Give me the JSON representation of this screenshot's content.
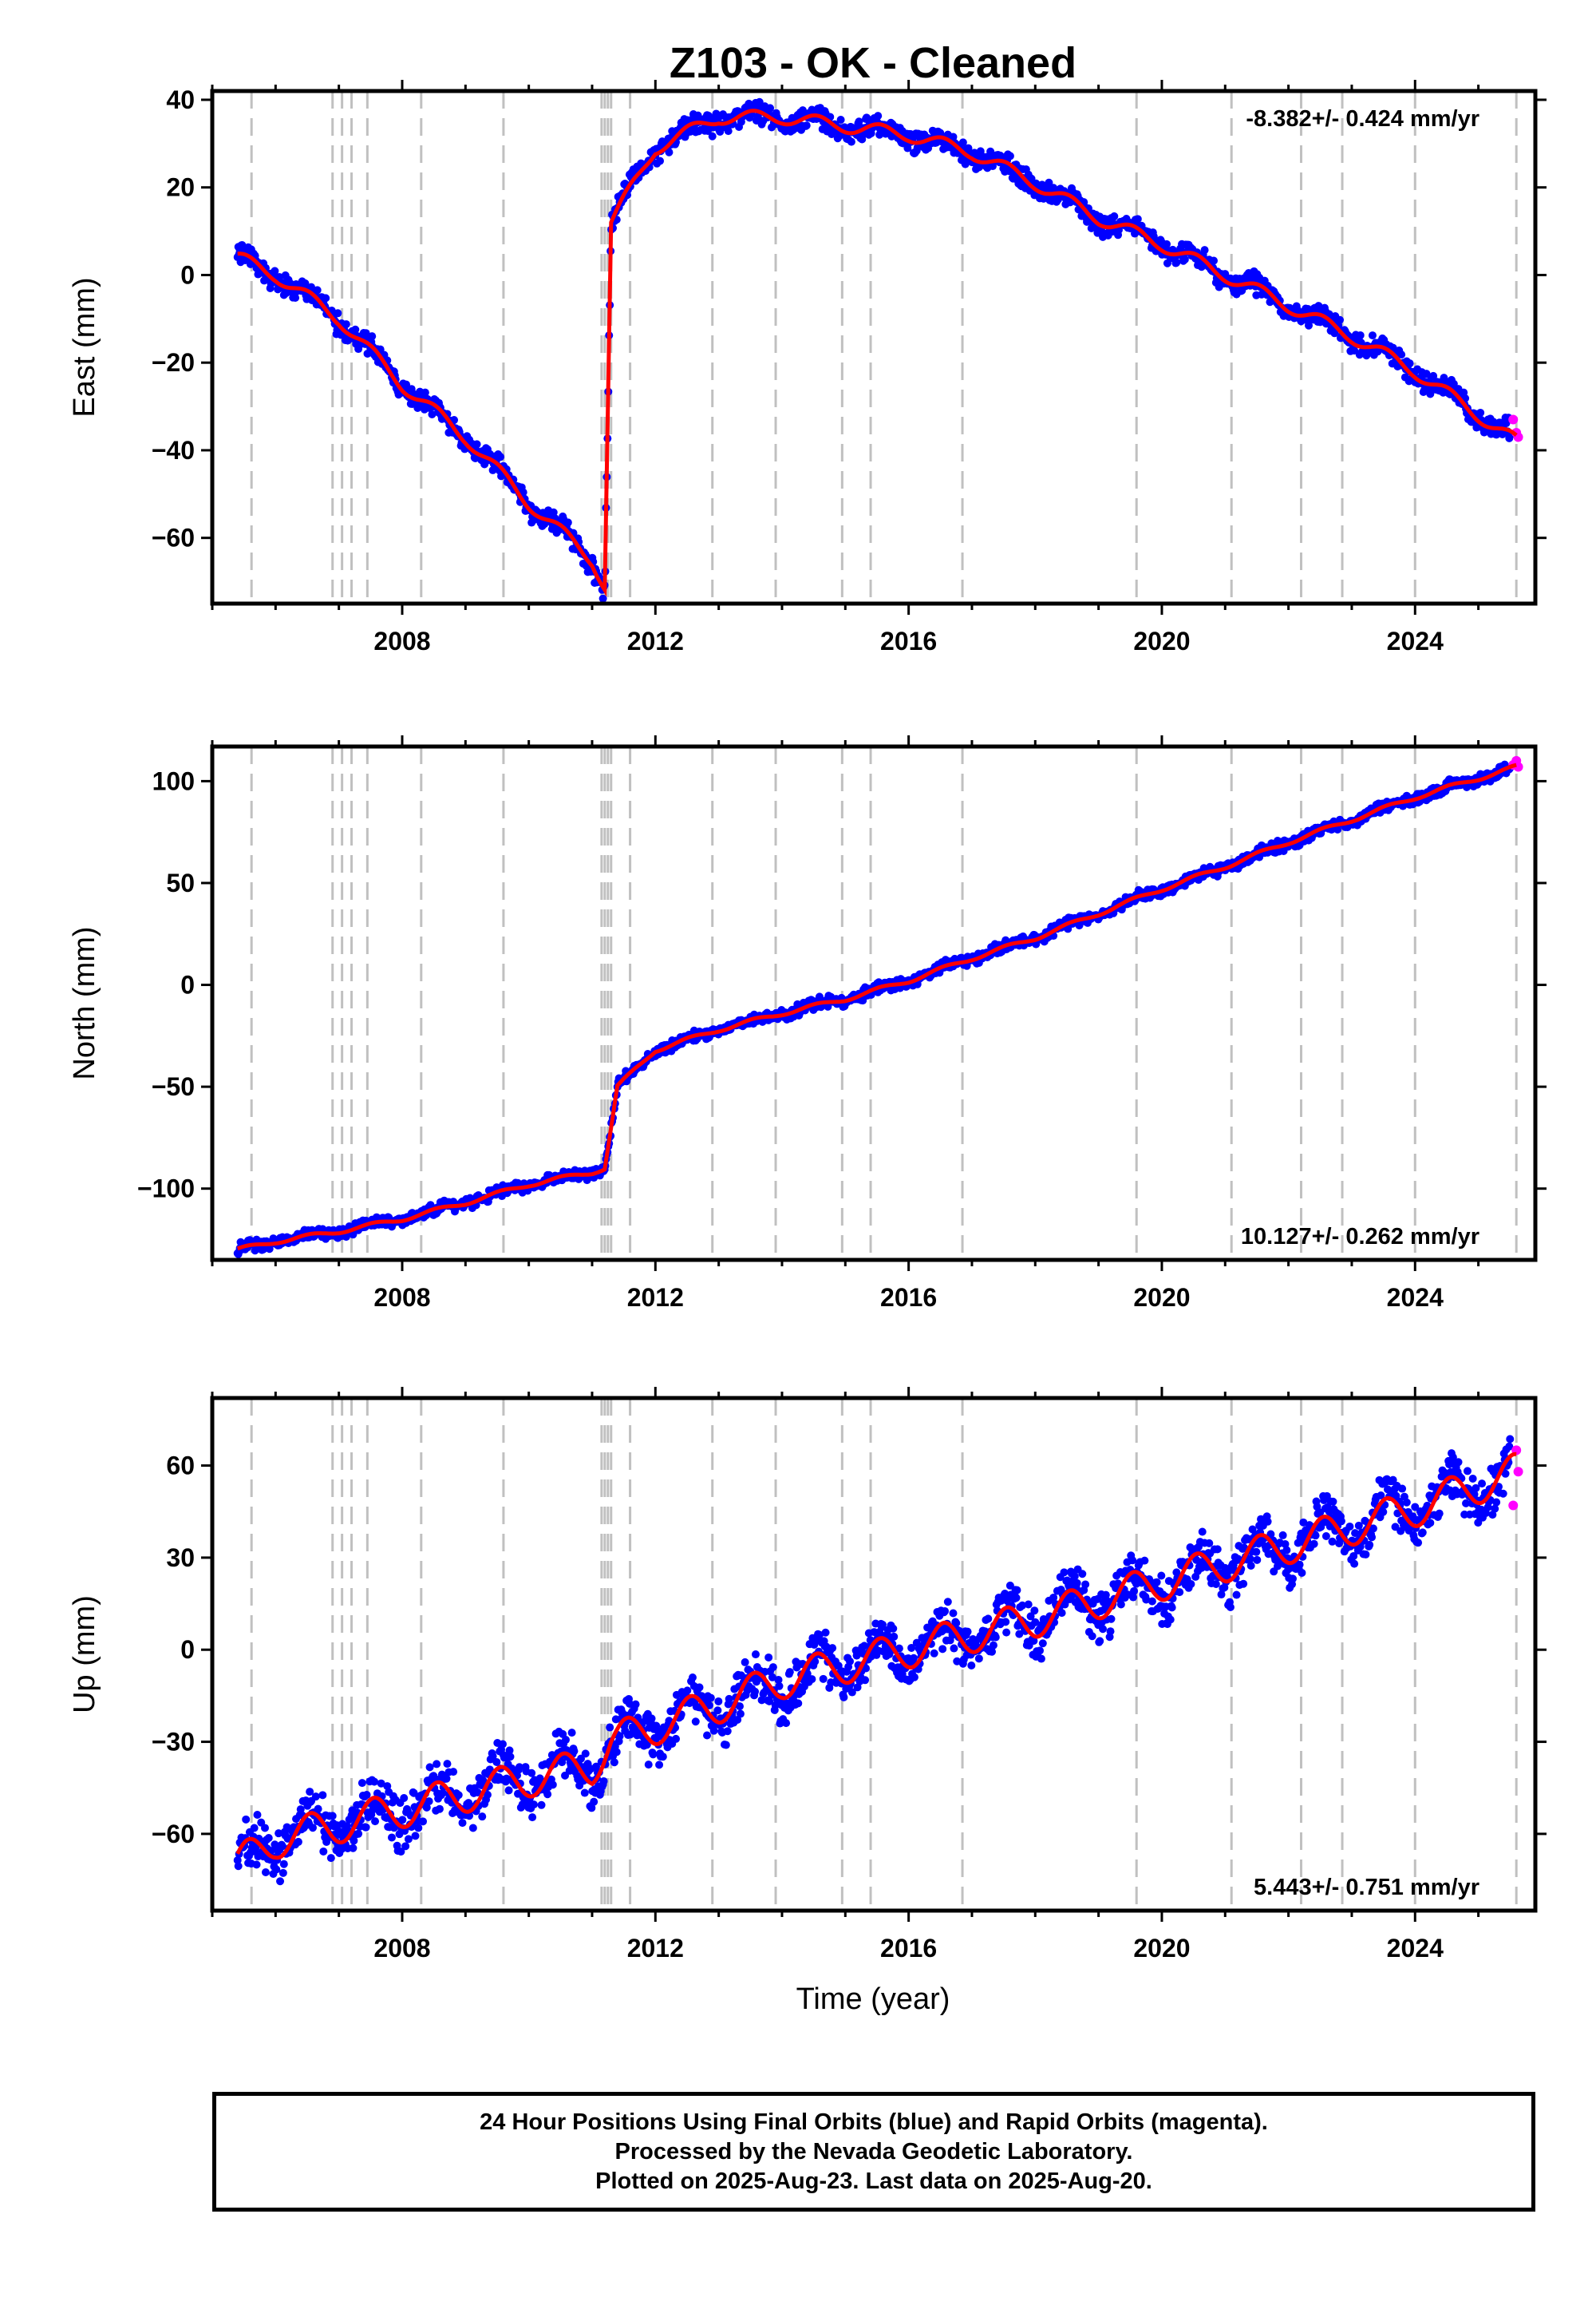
{
  "title": "Z103  - OK - Cleaned",
  "x_axis_label": "Time (year)",
  "x_ticks": [
    "2008",
    "2012",
    "2016",
    "2020",
    "2024"
  ],
  "caption": [
    "24 Hour Positions Using Final Orbits (blue) and Rapid Orbits (magenta).",
    "Processed by the Nevada Geodetic Laboratory.",
    "Plotted on 2025-Aug-23. Last data on 2025-Aug-20."
  ],
  "colors": {
    "final_orbits": "#0000ff",
    "rapid_orbits": "#ff00ff",
    "model_fit": "#ff0000",
    "event_lines": "#c0c0c0"
  },
  "chart_data": [
    {
      "type": "scatter",
      "component": "East",
      "ylabel": "East (mm)",
      "xlabel": "",
      "rate_label": "-8.382+/- 0.424 mm/yr",
      "xlim": [
        2005.0,
        2025.9
      ],
      "ylim": [
        -75,
        42
      ],
      "yticks": [
        40,
        20,
        0,
        -20,
        -40,
        -60
      ],
      "grid": false,
      "series": [
        {
          "name": "Final Orbits",
          "color": "#0000ff",
          "x": [
            2005.4,
            2006.0,
            2007.0,
            2008.0,
            2009.0,
            2010.0,
            2011.0,
            2011.2,
            2011.3,
            2012.0,
            2013.0,
            2014.0,
            2015.0,
            2016.0,
            2017.0,
            2018.0,
            2019.0,
            2020.0,
            2021.0,
            2022.0,
            2023.0,
            2024.0,
            2025.5
          ],
          "y": [
            4,
            0,
            -10,
            -25,
            -37,
            -52,
            -65,
            -71,
            12,
            29,
            36,
            36,
            34,
            32,
            28,
            21,
            13,
            7,
            0,
            -7,
            -14,
            -22,
            -37
          ]
        },
        {
          "name": "Rapid Orbits",
          "color": "#ff00ff",
          "x": [
            2025.55,
            2025.6,
            2025.63
          ],
          "y": [
            -33,
            -36,
            -37
          ]
        },
        {
          "name": "Model fit",
          "color": "#ff0000",
          "x": [
            2005.4,
            2006.0,
            2007.0,
            2008.0,
            2009.0,
            2010.0,
            2011.0,
            2011.2,
            2011.3,
            2012.0,
            2013.0,
            2014.0,
            2015.0,
            2016.0,
            2017.0,
            2018.0,
            2019.0,
            2020.0,
            2021.0,
            2022.0,
            2023.0,
            2024.0,
            2025.6
          ],
          "y": [
            4,
            0,
            -10,
            -25,
            -37,
            -52,
            -65,
            -71,
            12,
            29,
            36,
            36,
            34,
            32,
            28,
            21,
            13,
            7,
            0,
            -7,
            -14,
            -22,
            -38
          ]
        }
      ]
    },
    {
      "type": "scatter",
      "component": "North",
      "ylabel": "North (mm)",
      "xlabel": "",
      "rate_label": "10.127+/- 0.262 mm/yr",
      "xlim": [
        2005.0,
        2025.9
      ],
      "ylim": [
        -135,
        117
      ],
      "yticks": [
        100,
        50,
        0,
        -50,
        -100
      ],
      "grid": false,
      "series": [
        {
          "name": "Final Orbits",
          "color": "#0000ff",
          "x": [
            2005.4,
            2006.0,
            2007.0,
            2008.0,
            2009.0,
            2010.0,
            2011.0,
            2011.2,
            2011.4,
            2012.0,
            2013.0,
            2014.0,
            2015.0,
            2016.0,
            2017.0,
            2018.0,
            2019.0,
            2020.0,
            2021.0,
            2022.0,
            2023.0,
            2024.0,
            2025.5
          ],
          "y": [
            -130,
            -126,
            -121,
            -115,
            -107,
            -98,
            -92,
            -90,
            -50,
            -32,
            -22,
            -14,
            -7,
            2,
            13,
            23,
            35,
            47,
            58,
            70,
            81,
            92,
            106
          ]
        },
        {
          "name": "Rapid Orbits",
          "color": "#ff00ff",
          "x": [
            2025.55,
            2025.6,
            2025.63
          ],
          "y": [
            108,
            110,
            107
          ]
        },
        {
          "name": "Model fit",
          "color": "#ff0000",
          "x": [
            2005.4,
            2006.0,
            2007.0,
            2008.0,
            2009.0,
            2010.0,
            2011.0,
            2011.2,
            2011.4,
            2012.0,
            2013.0,
            2014.0,
            2015.0,
            2016.0,
            2017.0,
            2018.0,
            2019.0,
            2020.0,
            2021.0,
            2022.0,
            2023.0,
            2024.0,
            2025.6
          ],
          "y": [
            -130,
            -126,
            -121,
            -115,
            -107,
            -98,
            -92,
            -90,
            -50,
            -32,
            -22,
            -14,
            -7,
            2,
            13,
            23,
            35,
            47,
            58,
            70,
            81,
            92,
            107
          ]
        }
      ]
    },
    {
      "type": "scatter",
      "component": "Up",
      "ylabel": "Up (mm)",
      "xlabel": "Time (year)",
      "rate_label": "5.443+/- 0.751 mm/yr",
      "xlim": [
        2005.0,
        2025.9
      ],
      "ylim": [
        -85,
        82
      ],
      "yticks": [
        60,
        30,
        0,
        -30,
        -60
      ],
      "grid": false,
      "series": [
        {
          "name": "Final Orbits",
          "color": "#0000ff",
          "x": [
            2005.4,
            2006.0,
            2007.0,
            2008.0,
            2009.0,
            2010.0,
            2011.0,
            2011.3,
            2012.0,
            2013.0,
            2014.0,
            2015.0,
            2016.0,
            2017.0,
            2018.0,
            2019.0,
            2020.0,
            2021.0,
            2022.0,
            2023.0,
            2024.0,
            2025.5
          ],
          "y": [
            -70,
            -62,
            -57,
            -52,
            -47,
            -42,
            -38,
            -30,
            -25,
            -18,
            -10,
            -5,
            0,
            5,
            10,
            16,
            22,
            28,
            34,
            40,
            46,
            54
          ]
        },
        {
          "name": "Rapid Orbits",
          "color": "#ff00ff",
          "x": [
            2025.55,
            2025.6,
            2025.63
          ],
          "y": [
            47,
            65,
            58
          ]
        },
        {
          "name": "Model fit",
          "color": "#ff0000",
          "x": [
            2005.4,
            2006.0,
            2007.0,
            2008.0,
            2009.0,
            2010.0,
            2011.0,
            2011.3,
            2012.0,
            2013.0,
            2014.0,
            2015.0,
            2016.0,
            2017.0,
            2018.0,
            2019.0,
            2020.0,
            2021.0,
            2022.0,
            2023.0,
            2024.0,
            2025.6
          ],
          "y": [
            -70,
            -62,
            -57,
            -52,
            -47,
            -42,
            -38,
            -30,
            -25,
            -18,
            -10,
            -5,
            0,
            5,
            10,
            16,
            22,
            28,
            34,
            40,
            46,
            58
          ]
        }
      ]
    }
  ],
  "event_lines_years": [
    2005.62,
    2006.9,
    2007.05,
    2007.2,
    2007.45,
    2008.3,
    2009.6,
    2011.15,
    2011.2,
    2011.25,
    2011.3,
    2011.6,
    2012.9,
    2013.9,
    2014.95,
    2015.4,
    2016.85,
    2019.6,
    2021.1,
    2022.2,
    2022.85,
    2024.0,
    2025.6
  ]
}
